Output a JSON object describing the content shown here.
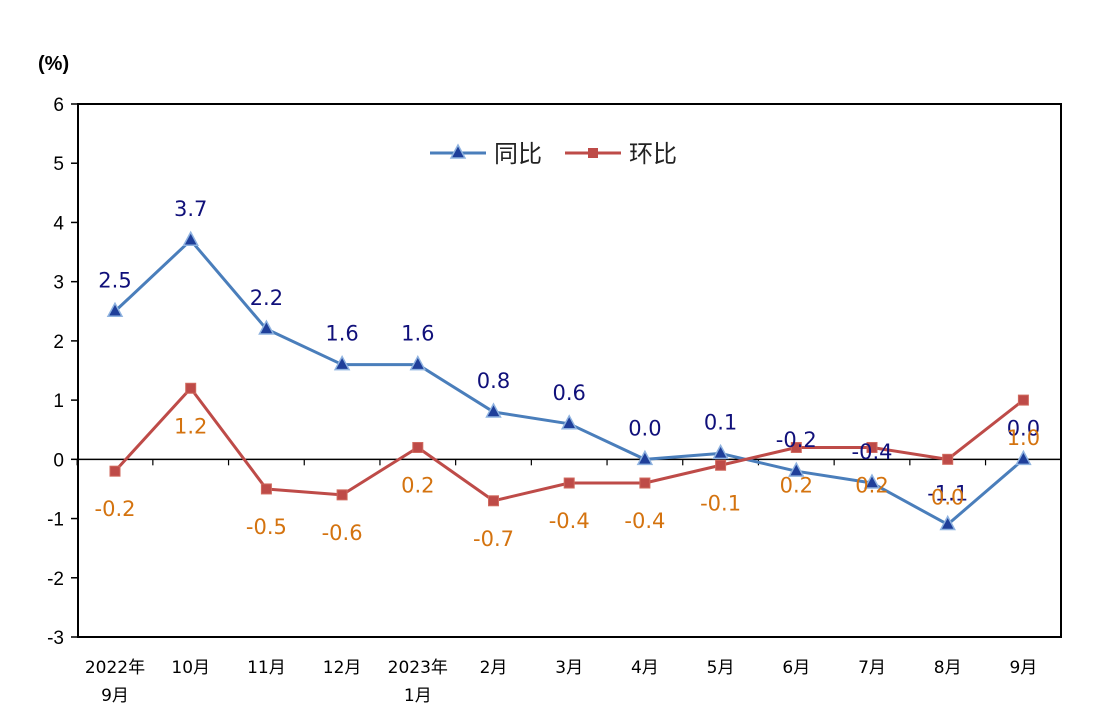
{
  "chart_data": {
    "type": "line",
    "ylabel": "(%)",
    "ylim": [
      -3,
      6
    ],
    "yticks": [
      "6",
      "5",
      "4",
      "3",
      "2",
      "1",
      "0",
      "-1",
      "-2",
      "-3"
    ],
    "categories": [
      [
        "2022年",
        "9月"
      ],
      [
        "10月"
      ],
      [
        "11月"
      ],
      [
        "12月"
      ],
      [
        "2023年",
        "1月"
      ],
      [
        "2月"
      ],
      [
        "3月"
      ],
      [
        "4月"
      ],
      [
        "5月"
      ],
      [
        "6月"
      ],
      [
        "7月"
      ],
      [
        "8月"
      ],
      [
        "9月"
      ]
    ],
    "legend": {
      "position": "top-center"
    },
    "grid": false,
    "series": [
      {
        "name": "同比",
        "color": "#4a7ebb",
        "label_color": "#10107a",
        "marker": "triangle",
        "values": [
          2.5,
          3.7,
          2.2,
          1.6,
          1.6,
          0.8,
          0.6,
          0.0,
          0.1,
          -0.2,
          -0.4,
          -1.1,
          0.0
        ],
        "labels": [
          "2.5",
          "3.7",
          "2.2",
          "1.6",
          "1.6",
          "0.8",
          "0.6",
          "0.0",
          "0.1",
          "-0.2",
          "-0.4",
          "-1.1",
          "0.0"
        ]
      },
      {
        "name": "环比",
        "color": "#be4b48",
        "label_color": "#d4730f",
        "marker": "square",
        "values": [
          -0.2,
          1.2,
          -0.5,
          -0.6,
          0.2,
          -0.7,
          -0.4,
          -0.4,
          -0.1,
          0.2,
          0.2,
          0.0,
          1.0
        ],
        "labels": [
          "-0.2",
          "1.2",
          "-0.5",
          "-0.6",
          "0.2",
          "-0.7",
          "-0.4",
          "-0.4",
          "-0.1",
          "0.2",
          "0.2",
          "0.0",
          "1.0"
        ]
      }
    ]
  }
}
